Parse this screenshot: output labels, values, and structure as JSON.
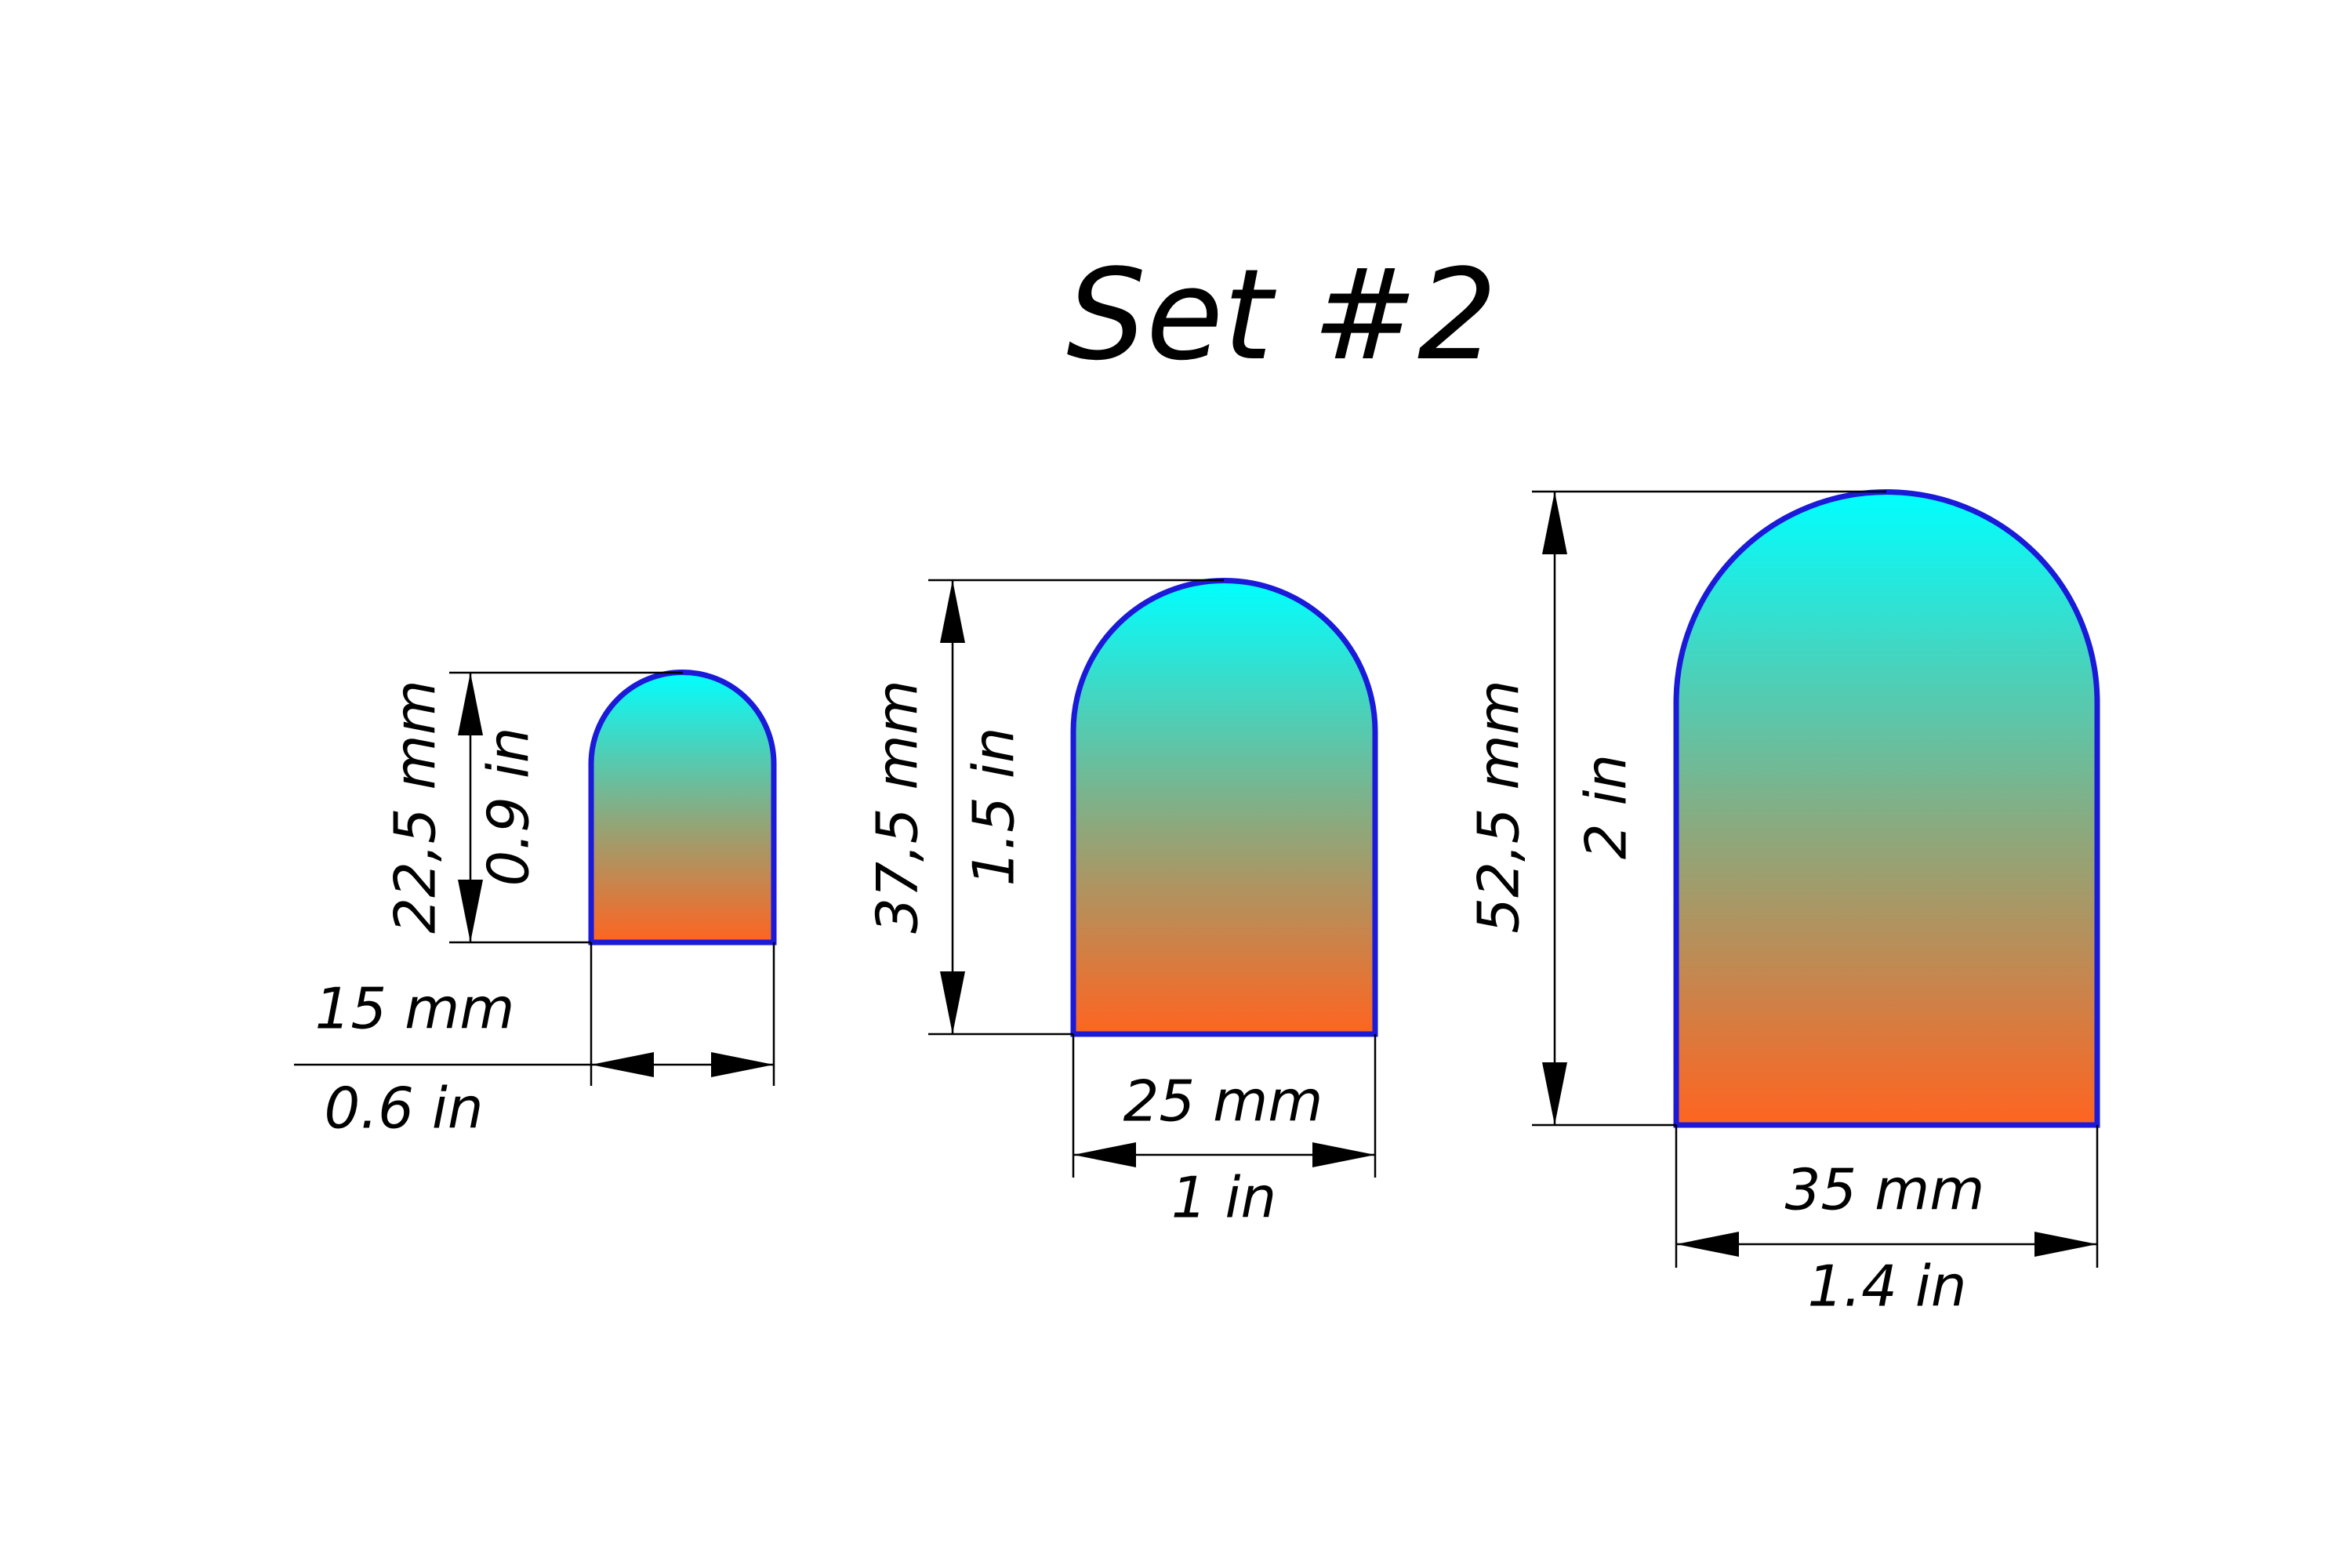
{
  "title": "Set #2",
  "shapes": [
    {
      "height_mm": "22,5 mm",
      "height_in": "0.9 in",
      "width_mm": "15 mm",
      "width_in": "0.6 in"
    },
    {
      "height_mm": "37,5 mm",
      "height_in": "1.5 in",
      "width_mm": "25 mm",
      "width_in": "1 in"
    },
    {
      "height_mm": "52,5 mm",
      "height_in": "2 in",
      "width_mm": "35 mm",
      "width_in": "1.4 in"
    }
  ]
}
